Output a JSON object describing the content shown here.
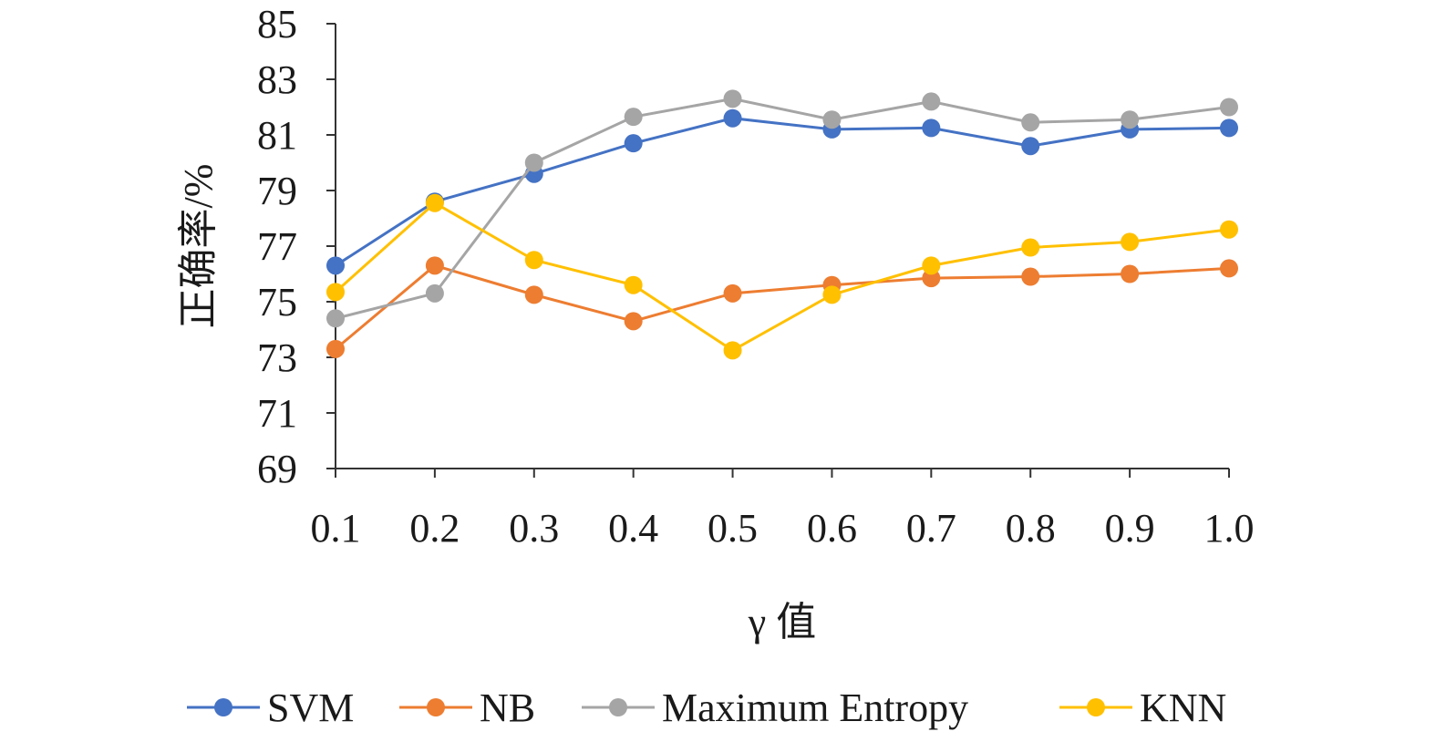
{
  "chart_data": {
    "type": "line",
    "title": "",
    "xlabel": "γ 值",
    "ylabel": "正确率/%",
    "categories": [
      "0.1",
      "0.2",
      "0.3",
      "0.4",
      "0.5",
      "0.6",
      "0.7",
      "0.8",
      "0.9",
      "1.0"
    ],
    "ylim": [
      69,
      85
    ],
    "yticks": [
      "69",
      "71",
      "73",
      "75",
      "77",
      "79",
      "81",
      "83",
      "85"
    ],
    "grid": false,
    "legend_position": "bottom",
    "series": [
      {
        "name": "SVM",
        "color": "#4472c4",
        "values": [
          76.3,
          78.6,
          79.6,
          80.7,
          81.6,
          81.2,
          81.25,
          80.6,
          81.2,
          81.25
        ]
      },
      {
        "name": "NB",
        "color": "#ed7d31",
        "values": [
          73.3,
          76.3,
          75.25,
          74.3,
          75.3,
          75.6,
          75.85,
          75.9,
          76.0,
          76.2
        ]
      },
      {
        "name": "Maximum Entropy",
        "color": "#a5a5a5",
        "values": [
          74.4,
          75.3,
          80.0,
          81.65,
          82.3,
          81.55,
          82.2,
          81.45,
          81.55,
          82.0
        ]
      },
      {
        "name": "KNN",
        "color": "#ffc000",
        "values": [
          75.35,
          78.55,
          76.5,
          75.6,
          73.25,
          75.25,
          76.3,
          76.95,
          77.15,
          77.6
        ]
      }
    ]
  }
}
